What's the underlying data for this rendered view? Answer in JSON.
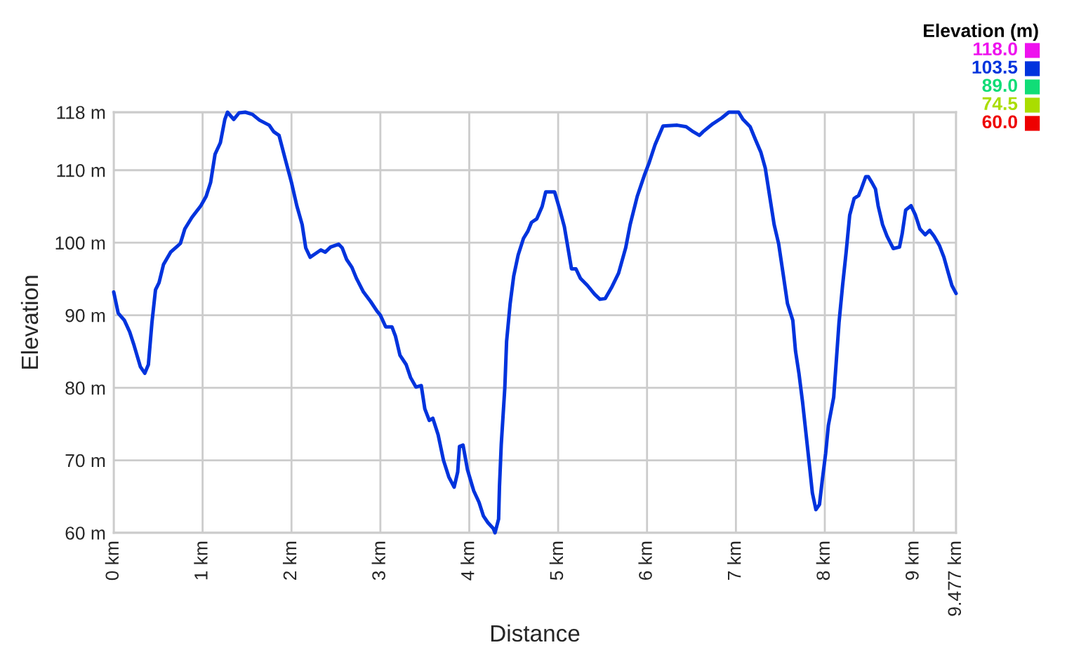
{
  "chart_data": {
    "type": "line",
    "xlabel": "Distance",
    "ylabel": "Elevation",
    "clabel": "Elevation (m)",
    "cticks": [
      {
        "value": 118,
        "label": "118.0"
      },
      {
        "value": 103.5,
        "label": "103.5"
      },
      {
        "value": 89,
        "label": "89.0"
      },
      {
        "value": 74.5,
        "label": "74.5"
      },
      {
        "value": 60,
        "label": "60.0"
      }
    ],
    "colors": [
      "#ee11ee",
      "#0033dd",
      "#11dd77",
      "#aadd00",
      "#ee0000"
    ],
    "xlim": [
      0,
      9.477
    ],
    "ylim": [
      60,
      118
    ],
    "xticks": [
      {
        "value": 0,
        "label": "0 km"
      },
      {
        "value": 1,
        "label": "1 km"
      },
      {
        "value": 2,
        "label": "2 km"
      },
      {
        "value": 3,
        "label": "3 km"
      },
      {
        "value": 4,
        "label": "4 km"
      },
      {
        "value": 5,
        "label": "5 km"
      },
      {
        "value": 6,
        "label": "6 km"
      },
      {
        "value": 7,
        "label": "7 km"
      },
      {
        "value": 8,
        "label": "8 km"
      },
      {
        "value": 9,
        "label": "9 km"
      },
      {
        "value": 9.477,
        "label": "9.477 km"
      }
    ],
    "yticks": [
      {
        "value": 60,
        "label": "60 m"
      },
      {
        "value": 70,
        "label": "70 m"
      },
      {
        "value": 80,
        "label": "80 m"
      },
      {
        "value": 90,
        "label": "90 m"
      },
      {
        "value": 100,
        "label": "100 m"
      },
      {
        "value": 110,
        "label": "110 m"
      },
      {
        "value": 118,
        "label": "118 m"
      }
    ],
    "grid": true,
    "x": [
      0,
      0.05,
      0.12,
      0.18,
      0.23,
      0.3,
      0.35,
      0.39,
      0.43,
      0.47,
      0.51,
      0.56,
      0.64,
      0.75,
      0.8,
      0.88,
      0.98,
      1.04,
      1.09,
      1.14,
      1.2,
      1.25,
      1.28,
      1.35,
      1.41,
      1.48,
      1.56,
      1.64,
      1.75,
      1.8,
      1.86,
      1.93,
      2.0,
      2.06,
      2.12,
      2.16,
      2.21,
      2.27,
      2.33,
      2.38,
      2.44,
      2.53,
      2.57,
      2.62,
      2.68,
      2.73,
      2.81,
      2.89,
      2.96,
      3.0,
      3.06,
      3.13,
      3.17,
      3.22,
      3.29,
      3.34,
      3.4,
      3.46,
      3.5,
      3.55,
      3.59,
      3.65,
      3.71,
      3.77,
      3.83,
      3.87,
      3.89,
      3.93,
      3.98,
      4.05,
      4.11,
      4.16,
      4.21,
      4.27,
      4.29,
      4.33,
      4.34,
      4.36,
      4.4,
      4.42,
      4.46,
      4.5,
      4.55,
      4.61,
      4.66,
      4.7,
      4.76,
      4.82,
      4.86,
      4.96,
      5.02,
      5.07,
      5.11,
      5.15,
      5.2,
      5.25,
      5.33,
      5.41,
      5.47,
      5.53,
      5.6,
      5.68,
      5.76,
      5.81,
      5.89,
      5.97,
      6.02,
      6.09,
      6.18,
      6.34,
      6.44,
      6.52,
      6.59,
      6.63,
      6.74,
      6.84,
      6.92,
      7.03,
      7.08,
      7.16,
      7.22,
      7.28,
      7.33,
      7.38,
      7.43,
      7.48,
      7.53,
      7.58,
      7.64,
      7.67,
      7.71,
      7.75,
      7.79,
      7.83,
      7.86,
      7.9,
      7.94,
      7.97,
      8.01,
      8.04,
      8.1,
      8.13,
      8.16,
      8.2,
      8.24,
      8.28,
      8.33,
      8.38,
      8.41,
      8.46,
      8.49,
      8.53,
      8.57,
      8.6,
      8.65,
      8.7,
      8.77,
      8.84,
      8.87,
      8.91,
      8.97,
      9.02,
      9.07,
      9.13,
      9.18,
      9.23,
      9.29,
      9.34,
      9.39,
      9.43,
      9.477
    ],
    "series": [
      {
        "color": "#0033dd",
        "values": [
          93.2,
          90.3,
          89.3,
          87.7,
          85.8,
          82.9,
          82.0,
          83.2,
          89.0,
          93.5,
          94.5,
          97.0,
          98.7,
          99.9,
          101.9,
          103.5,
          105.1,
          106.4,
          108.3,
          112.2,
          113.8,
          117.0,
          118.0,
          117.0,
          117.9,
          118.0,
          117.7,
          116.9,
          116.2,
          115.3,
          114.8,
          111.5,
          108.3,
          105.1,
          102.5,
          99.3,
          98.0,
          98.5,
          99.0,
          98.7,
          99.4,
          99.8,
          99.3,
          97.7,
          96.6,
          95.1,
          93.2,
          91.9,
          90.6,
          90.0,
          88.4,
          88.4,
          87.1,
          84.5,
          83.2,
          81.4,
          80.1,
          80.3,
          77.1,
          75.5,
          75.8,
          73.5,
          70.0,
          67.7,
          66.3,
          68.4,
          71.9,
          72.1,
          68.7,
          65.8,
          64.2,
          62.3,
          61.4,
          60.6,
          60.0,
          61.9,
          66.4,
          72.2,
          80.0,
          86.4,
          91.6,
          95.4,
          98.3,
          100.6,
          101.6,
          102.8,
          103.3,
          105.0,
          107.0,
          107.0,
          104.5,
          102.2,
          99.3,
          96.4,
          96.4,
          95.1,
          94.1,
          92.9,
          92.2,
          92.3,
          93.8,
          95.8,
          99.3,
          102.5,
          106.4,
          109.3,
          110.9,
          113.5,
          116.1,
          116.2,
          116.0,
          115.3,
          114.8,
          115.3,
          116.4,
          117.2,
          118.0,
          118.0,
          117.0,
          116.0,
          114.2,
          112.5,
          110.3,
          106.4,
          102.5,
          99.9,
          95.8,
          91.6,
          89.3,
          85.1,
          81.9,
          78.0,
          73.5,
          69.0,
          65.5,
          63.2,
          63.9,
          67.1,
          71.0,
          74.8,
          78.7,
          83.8,
          89.0,
          94.1,
          98.7,
          103.8,
          106.1,
          106.5,
          107.4,
          109.1,
          109.1,
          108.3,
          107.4,
          105.1,
          102.5,
          100.9,
          99.2,
          99.4,
          101.2,
          104.5,
          105.1,
          103.8,
          101.9,
          101.1,
          101.7,
          100.9,
          99.6,
          98.0,
          95.8,
          94.1,
          93.0
        ]
      }
    ]
  }
}
